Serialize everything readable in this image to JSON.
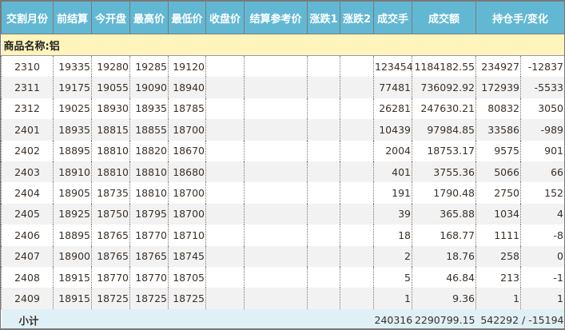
{
  "headers": [
    "交割月份",
    "前结算",
    "今开盘",
    "最高价",
    "最低价",
    "收盘价",
    "结算参考价",
    "涨跌1",
    "涨跌2",
    "成交手",
    "成交额",
    "持仓手/变化"
  ],
  "product_label": "商品名称:铝",
  "rows": [
    [
      "2310",
      "19335",
      "19280",
      "19285",
      "19120",
      "",
      "",
      "",
      "",
      "123454",
      "1184182.55",
      "234927",
      "-12837"
    ],
    [
      "2311",
      "19175",
      "19055",
      "19090",
      "18940",
      "",
      "",
      "",
      "",
      "77481",
      "736092.92",
      "172939",
      "-5533"
    ],
    [
      "2312",
      "19025",
      "18930",
      "18935",
      "18785",
      "",
      "",
      "",
      "",
      "26281",
      "247630.21",
      "80832",
      "3050"
    ],
    [
      "2401",
      "18935",
      "18815",
      "18855",
      "18700",
      "",
      "",
      "",
      "",
      "10439",
      "97984.85",
      "33586",
      "-989"
    ],
    [
      "2402",
      "18895",
      "18810",
      "18820",
      "18670",
      "",
      "",
      "",
      "",
      "2004",
      "18753.17",
      "9575",
      "901"
    ],
    [
      "2403",
      "18910",
      "18810",
      "18810",
      "18680",
      "",
      "",
      "",
      "",
      "401",
      "3755.36",
      "5066",
      "66"
    ],
    [
      "2404",
      "18905",
      "18735",
      "18810",
      "18700",
      "",
      "",
      "",
      "",
      "191",
      "1790.48",
      "2750",
      "152"
    ],
    [
      "2405",
      "18925",
      "18750",
      "18795",
      "18700",
      "",
      "",
      "",
      "",
      "39",
      "365.88",
      "1034",
      "4"
    ],
    [
      "2406",
      "18895",
      "18765",
      "18770",
      "18710",
      "",
      "",
      "",
      "",
      "18",
      "168.77",
      "1111",
      "-8"
    ],
    [
      "2407",
      "18900",
      "18765",
      "18765",
      "18745",
      "",
      "",
      "",
      "",
      "2",
      "18.76",
      "258",
      "0"
    ],
    [
      "2408",
      "18915",
      "18770",
      "18770",
      "18705",
      "",
      "",
      "",
      "",
      "5",
      "46.84",
      "213",
      "-1"
    ],
    [
      "2409",
      "18915",
      "18725",
      "18725",
      "18725",
      "",
      "",
      "",
      "",
      "1",
      "9.36",
      "1",
      "1"
    ]
  ],
  "total": {
    "label": "小计",
    "volume": "240316",
    "turnover": "2290799.15",
    "open_interest": "542292 / -15194"
  }
}
